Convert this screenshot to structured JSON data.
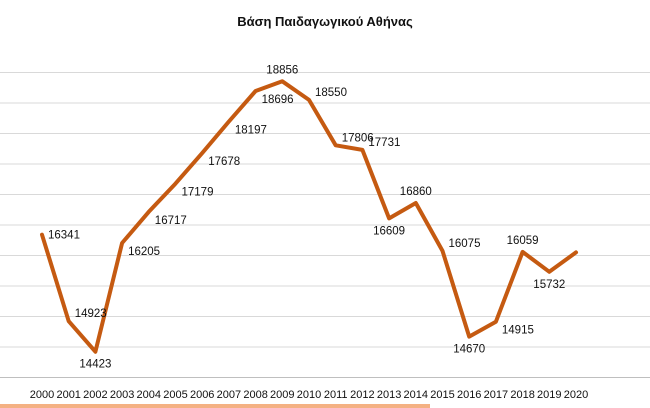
{
  "chart_data": {
    "type": "line",
    "title": "Βάση Παιδαγωγικού Αθήνας",
    "xlabel": "",
    "ylabel": "",
    "categories": [
      "2000",
      "2001",
      "2002",
      "2003",
      "2004",
      "2005",
      "2006",
      "2007",
      "2008",
      "2009",
      "2010",
      "2011",
      "2012",
      "2013",
      "2014",
      "2015",
      "2016",
      "2017",
      "2018",
      "2019",
      "2020"
    ],
    "series": [
      {
        "values": [
          16341,
          14923,
          14423,
          16205,
          16717,
          17179,
          17678,
          18197,
          18696,
          18856,
          18550,
          17806,
          17731,
          16609,
          16860,
          16075,
          14670,
          14915,
          16059,
          15732,
          16050
        ]
      }
    ],
    "data_labels": [
      "16341",
      "14923",
      "14423",
      "16205",
      "16717",
      "17179",
      "17678",
      "18197",
      "18696",
      "18856",
      "18550",
      "17806",
      "17731",
      "16609",
      "16860",
      "16075",
      "14670",
      "14915",
      "16059",
      "15732",
      ""
    ],
    "ylim": [
      14000,
      19500
    ],
    "y_gridlines": [
      14000,
      14500,
      15000,
      15500,
      16000,
      16500,
      17000,
      17500,
      18000,
      18500,
      19000
    ],
    "grid": true,
    "legend": "none",
    "line_color": "#c55a11"
  }
}
